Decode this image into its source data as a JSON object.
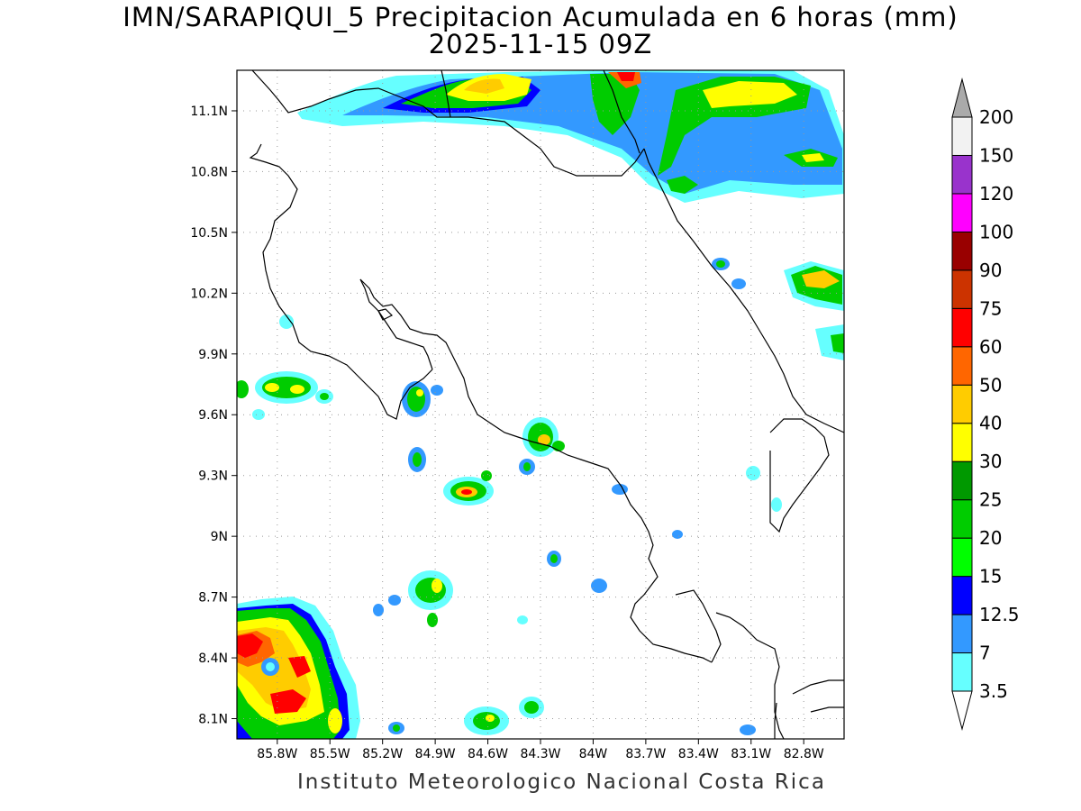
{
  "title_line1": "IMN/SARAPIQUI_5 Precipitacion Acumulada en 6 horas (mm)",
  "title_line2": "2025-11-15 09Z",
  "footer": "Instituto Meteorologico Nacional Costa Rica",
  "map": {
    "lon_range": [
      -86.03,
      -82.57
    ],
    "lat_range": [
      8.0,
      11.3
    ],
    "lat_ticks": [
      {
        "value": 11.1,
        "label": "11.1N"
      },
      {
        "value": 10.8,
        "label": "10.8N"
      },
      {
        "value": 10.5,
        "label": "10.5N"
      },
      {
        "value": 10.2,
        "label": "10.2N"
      },
      {
        "value": 9.9,
        "label": "9.9N"
      },
      {
        "value": 9.6,
        "label": "9.6N"
      },
      {
        "value": 9.3,
        "label": "9.3N"
      },
      {
        "value": 9.0,
        "label": "9N"
      },
      {
        "value": 8.7,
        "label": "8.7N"
      },
      {
        "value": 8.4,
        "label": "8.4N"
      },
      {
        "value": 8.1,
        "label": "8.1N"
      }
    ],
    "lon_ticks": [
      {
        "value": -85.8,
        "label": "85.8W"
      },
      {
        "value": -85.5,
        "label": "85.5W"
      },
      {
        "value": -85.2,
        "label": "85.2W"
      },
      {
        "value": -84.9,
        "label": "84.9W"
      },
      {
        "value": -84.6,
        "label": "84.6W"
      },
      {
        "value": -84.3,
        "label": "84.3W"
      },
      {
        "value": -84.0,
        "label": "84W"
      },
      {
        "value": -83.7,
        "label": "83.7W"
      },
      {
        "value": -83.4,
        "label": "83.4W"
      },
      {
        "value": -83.1,
        "label": "83.1W"
      },
      {
        "value": -82.8,
        "label": "82.8W"
      }
    ],
    "grid": "dotted"
  },
  "colorbar": {
    "levels": [
      {
        "label": "3.5",
        "color": "#66ffff"
      },
      {
        "label": "7",
        "color": "#3399ff"
      },
      {
        "label": "12.5",
        "color": "#0000ff"
      },
      {
        "label": "15",
        "color": "#00ff00"
      },
      {
        "label": "20",
        "color": "#00cc00"
      },
      {
        "label": "25",
        "color": "#009900"
      },
      {
        "label": "30",
        "color": "#ffff00"
      },
      {
        "label": "40",
        "color": "#ffcc00"
      },
      {
        "label": "50",
        "color": "#ff6600"
      },
      {
        "label": "60",
        "color": "#ff0000"
      },
      {
        "label": "75",
        "color": "#cc3300"
      },
      {
        "label": "90",
        "color": "#990000"
      },
      {
        "label": "100",
        "color": "#ff00ff"
      },
      {
        "label": "120",
        "color": "#9933cc"
      },
      {
        "label": "150",
        "color": "#f2f2f2"
      },
      {
        "label": "200",
        "color": "#aaaaaa"
      }
    ]
  }
}
